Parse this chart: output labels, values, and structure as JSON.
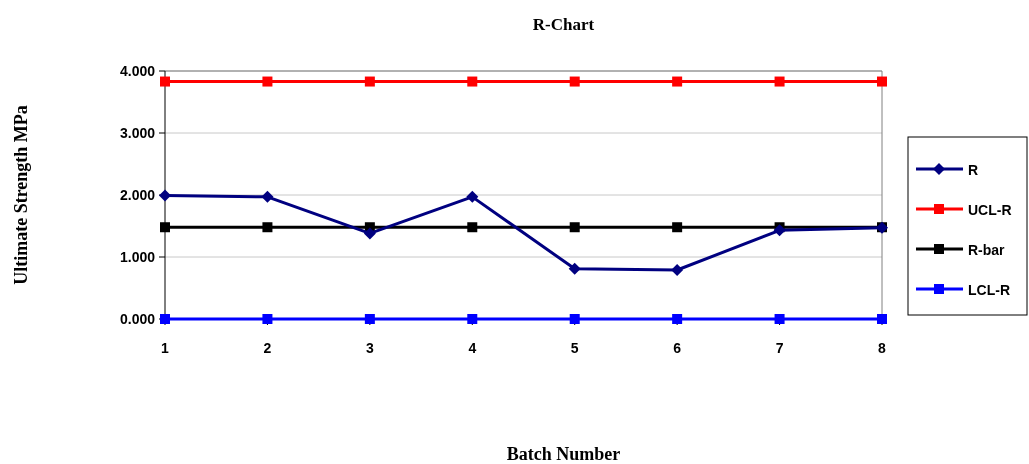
{
  "chart_data": {
    "type": "line",
    "title": "R-Chart",
    "xlabel": "Batch Number",
    "ylabel": "Ultimate Strength  MPa",
    "categories": [
      "1",
      "2",
      "3",
      "4",
      "5",
      "6",
      "7",
      "8"
    ],
    "series": [
      {
        "name": "R",
        "color": "#000080",
        "marker": "diamond",
        "values": [
          1.99,
          1.97,
          1.38,
          1.97,
          0.81,
          0.79,
          1.43,
          1.47
        ]
      },
      {
        "name": "UCL-R",
        "color": "#ff0000",
        "marker": "square",
        "values": [
          3.83,
          3.83,
          3.83,
          3.83,
          3.83,
          3.83,
          3.83,
          3.83
        ]
      },
      {
        "name": "R-bar",
        "color": "#000000",
        "marker": "square",
        "values": [
          1.48,
          1.48,
          1.48,
          1.48,
          1.48,
          1.48,
          1.48,
          1.48
        ]
      },
      {
        "name": "LCL-R",
        "color": "#0000ff",
        "marker": "square",
        "values": [
          0,
          0,
          0,
          0,
          0,
          0,
          0,
          0
        ]
      }
    ],
    "ylim": [
      0,
      4
    ],
    "yticks": [
      {
        "value": 0,
        "label": "0.000"
      },
      {
        "value": 1,
        "label": "1.000"
      },
      {
        "value": 2,
        "label": "2.000"
      },
      {
        "value": 3,
        "label": "3.000"
      },
      {
        "value": 4,
        "label": "4.000"
      }
    ],
    "grid": "y",
    "legend": "right"
  }
}
